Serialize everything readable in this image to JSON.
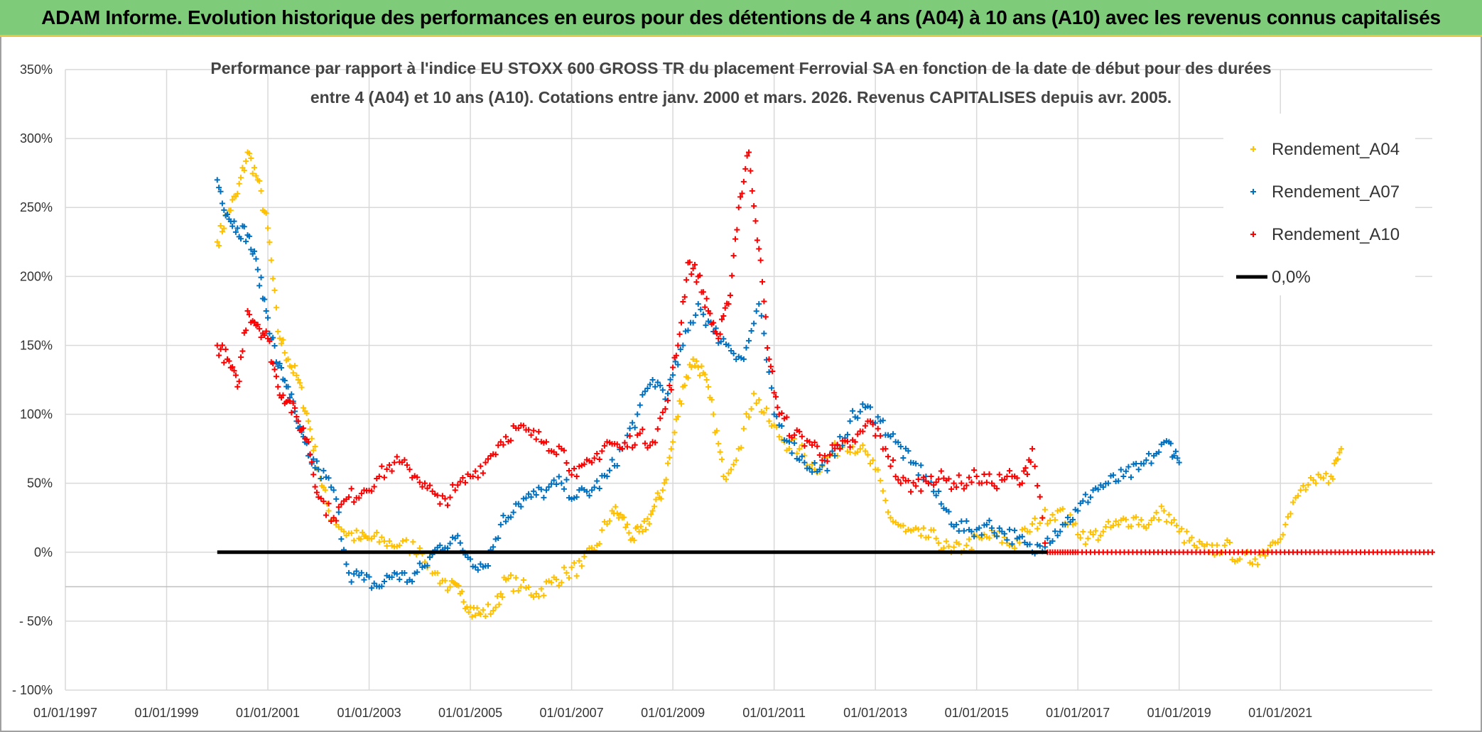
{
  "header": {
    "title": "ADAM Informe. Evolution historique des performances en euros pour des détentions de 4 ans (A04) à 10 ans (A10) avec les revenus connus capitalisés"
  },
  "colors": {
    "banner": "#7ecb7a",
    "series_A04": "#ffc000",
    "series_A07": "#0070c0",
    "series_A10": "#ff0000",
    "zero_line": "#000000",
    "grid": "#d9d9d9"
  },
  "chart_data": {
    "type": "scatter",
    "title_line1": "Performance par rapport à l'indice EU STOXX 600 GROSS TR  du placement Ferrovial SA en fonction de la date de début pour des durées",
    "title_line2": "entre 4 (A04) et 10 ans (A10). Cotations entre janv. 2000 et mars. 2026. Revenus CAPITALISES depuis avr. 2005.",
    "xlabel": "",
    "ylabel": "",
    "x_range": [
      1997.0,
      2024.0
    ],
    "ylim": [
      -100,
      350
    ],
    "x_ticks": [
      {
        "value": 1997.0,
        "label": "01/01/1997"
      },
      {
        "value": 1999.0,
        "label": "01/01/1999"
      },
      {
        "value": 2001.0,
        "label": "01/01/2001"
      },
      {
        "value": 2003.0,
        "label": "01/01/2003"
      },
      {
        "value": 2005.0,
        "label": "01/01/2005"
      },
      {
        "value": 2007.0,
        "label": "01/01/2007"
      },
      {
        "value": 2009.0,
        "label": "01/01/2009"
      },
      {
        "value": 2011.0,
        "label": "01/01/2011"
      },
      {
        "value": 2013.0,
        "label": "01/01/2013"
      },
      {
        "value": 2015.0,
        "label": "01/01/2015"
      },
      {
        "value": 2017.0,
        "label": "01/01/2017"
      },
      {
        "value": 2019.0,
        "label": "01/01/2019"
      },
      {
        "value": 2021.0,
        "label": "01/01/2021"
      }
    ],
    "y_ticks": [
      {
        "value": 350,
        "label": "350%"
      },
      {
        "value": 300,
        "label": "300%"
      },
      {
        "value": 250,
        "label": "250%"
      },
      {
        "value": 200,
        "label": "200%"
      },
      {
        "value": 150,
        "label": "150%"
      },
      {
        "value": 100,
        "label": "100%"
      },
      {
        "value": 50,
        "label": "50%"
      },
      {
        "value": 0,
        "label": "0%"
      },
      {
        "value": -50,
        "label": "- 50%"
      },
      {
        "value": -100,
        "label": "- 100%"
      }
    ],
    "legend": [
      "Rendement_A04",
      "Rendement_A07",
      "Rendement_A10",
      "0,0%"
    ],
    "series": [
      {
        "name": "Rendement_A04",
        "marker": "+",
        "x": [
          2000.0,
          2000.2,
          2000.4,
          2000.6,
          2000.8,
          2001.0,
          2001.2,
          2001.4,
          2001.6,
          2001.8,
          2002.0,
          2002.2,
          2002.5,
          2002.8,
          2003.0,
          2003.3,
          2003.6,
          2004.0,
          2004.3,
          2004.6,
          2004.8,
          2005.0,
          2005.2,
          2005.5,
          2005.7,
          2006.0,
          2006.3,
          2006.6,
          2006.9,
          2007.2,
          2007.5,
          2007.8,
          2008.0,
          2008.2,
          2008.4,
          2008.6,
          2008.8,
          2009.0,
          2009.2,
          2009.4,
          2009.6,
          2009.8,
          2010.0,
          2010.3,
          2010.6,
          2010.9,
          2011.2,
          2011.5,
          2011.8,
          2012.1,
          2012.4,
          2012.7,
          2013.0,
          2013.3,
          2013.6,
          2013.9,
          2014.2,
          2014.5,
          2014.8,
          2015.1,
          2015.4,
          2015.7,
          2016.0,
          2016.3,
          2016.6,
          2016.9,
          2017.2,
          2017.5,
          2017.8,
          2018.1,
          2018.4,
          2018.7,
          2019.0,
          2019.3,
          2019.6,
          2019.9,
          2020.2,
          2020.5,
          2020.8,
          2021.1,
          2021.4,
          2021.7,
          2022.0,
          2022.2
        ],
        "y": [
          225,
          245,
          260,
          290,
          270,
          235,
          160,
          140,
          125,
          95,
          60,
          30,
          15,
          10,
          10,
          8,
          5,
          3,
          -15,
          -25,
          -30,
          -40,
          -45,
          -40,
          -20,
          -25,
          -30,
          -22,
          -15,
          -10,
          5,
          30,
          25,
          10,
          15,
          30,
          45,
          80,
          120,
          140,
          130,
          100,
          55,
          75,
          115,
          95,
          80,
          75,
          60,
          70,
          80,
          75,
          60,
          25,
          15,
          12,
          10,
          0,
          5,
          10,
          12,
          5,
          15,
          25,
          30,
          20,
          10,
          15,
          20,
          25,
          20,
          30,
          15,
          5,
          0,
          5,
          -5,
          -5,
          5,
          20,
          45,
          50,
          55,
          75
        ]
      },
      {
        "name": "Rendement_A07",
        "marker": "+",
        "x": [
          2000.0,
          2000.2,
          2000.4,
          2000.6,
          2000.8,
          2001.0,
          2001.2,
          2001.4,
          2001.6,
          2001.8,
          2002.0,
          2002.3,
          2002.6,
          2002.9,
          2003.2,
          2003.5,
          2003.8,
          2004.1,
          2004.4,
          2004.7,
          2005.0,
          2005.3,
          2005.6,
          2005.9,
          2006.2,
          2006.5,
          2006.8,
          2007.1,
          2007.4,
          2007.7,
          2008.0,
          2008.3,
          2008.6,
          2008.9,
          2009.2,
          2009.5,
          2009.8,
          2010.1,
          2010.4,
          2010.7,
          2011.0,
          2011.3,
          2011.6,
          2011.9,
          2012.2,
          2012.5,
          2012.8,
          2013.1,
          2013.4,
          2013.7,
          2014.0,
          2014.3,
          2014.6,
          2014.9,
          2015.2,
          2015.5,
          2015.8,
          2016.1,
          2016.4,
          2016.7,
          2017.0,
          2017.3,
          2017.6,
          2017.9,
          2018.2,
          2018.5,
          2018.8,
          2019.0
        ],
        "y": [
          270,
          245,
          235,
          230,
          205,
          170,
          135,
          120,
          90,
          70,
          60,
          45,
          -15,
          -20,
          -25,
          -15,
          -20,
          -10,
          5,
          10,
          -5,
          -10,
          20,
          35,
          40,
          45,
          50,
          40,
          45,
          55,
          75,
          100,
          125,
          115,
          150,
          180,
          160,
          150,
          140,
          180,
          100,
          80,
          65,
          60,
          70,
          95,
          105,
          95,
          80,
          65,
          55,
          35,
          20,
          15,
          20,
          15,
          10,
          0,
          10,
          20,
          30,
          45,
          50,
          55,
          60,
          70,
          80,
          65
        ]
      },
      {
        "name": "Rendement_A10",
        "marker": "+",
        "x": [
          2000.0,
          2000.2,
          2000.4,
          2000.6,
          2000.8,
          2001.0,
          2001.2,
          2001.4,
          2001.6,
          2001.8,
          2002.0,
          2002.3,
          2002.6,
          2002.9,
          2003.2,
          2003.5,
          2003.8,
          2004.1,
          2004.4,
          2004.7,
          2005.0,
          2005.3,
          2005.6,
          2005.9,
          2006.2,
          2006.5,
          2006.8,
          2007.1,
          2007.4,
          2007.7,
          2008.0,
          2008.3,
          2008.6,
          2008.9,
          2009.1,
          2009.3,
          2009.5,
          2009.7,
          2009.9,
          2010.1,
          2010.3,
          2010.5,
          2010.7,
          2010.9,
          2011.1,
          2011.4,
          2011.7,
          2012.0,
          2012.3,
          2012.6,
          2012.9,
          2013.2,
          2013.5,
          2013.8,
          2014.1,
          2014.4,
          2014.7,
          2015.0,
          2015.3,
          2015.6,
          2015.9,
          2016.1,
          2016.4,
          2016.7,
          2017.0,
          2017.5,
          2018.0,
          2018.5,
          2019.0,
          2019.5,
          2020.0,
          2020.5,
          2021.0,
          2021.5,
          2022.0,
          2022.5,
          2023.0,
          2023.5,
          2024.0
        ],
        "y": [
          150,
          140,
          120,
          175,
          165,
          155,
          120,
          110,
          95,
          80,
          40,
          25,
          40,
          45,
          55,
          65,
          60,
          50,
          35,
          45,
          55,
          65,
          80,
          90,
          85,
          80,
          75,
          55,
          65,
          80,
          75,
          85,
          80,
          110,
          150,
          210,
          200,
          175,
          155,
          180,
          250,
          290,
          220,
          140,
          100,
          85,
          80,
          70,
          75,
          80,
          95,
          75,
          50,
          48,
          55,
          52,
          50,
          55,
          50,
          55,
          50,
          75,
          0,
          0,
          0,
          0,
          0,
          0,
          0,
          0,
          0,
          0,
          0,
          0,
          0,
          0,
          0,
          0,
          0
        ]
      }
    ],
    "reference_line": {
      "name": "0,0%",
      "y": 0,
      "x_from": 2000.0,
      "x_to": 2016.4
    }
  }
}
